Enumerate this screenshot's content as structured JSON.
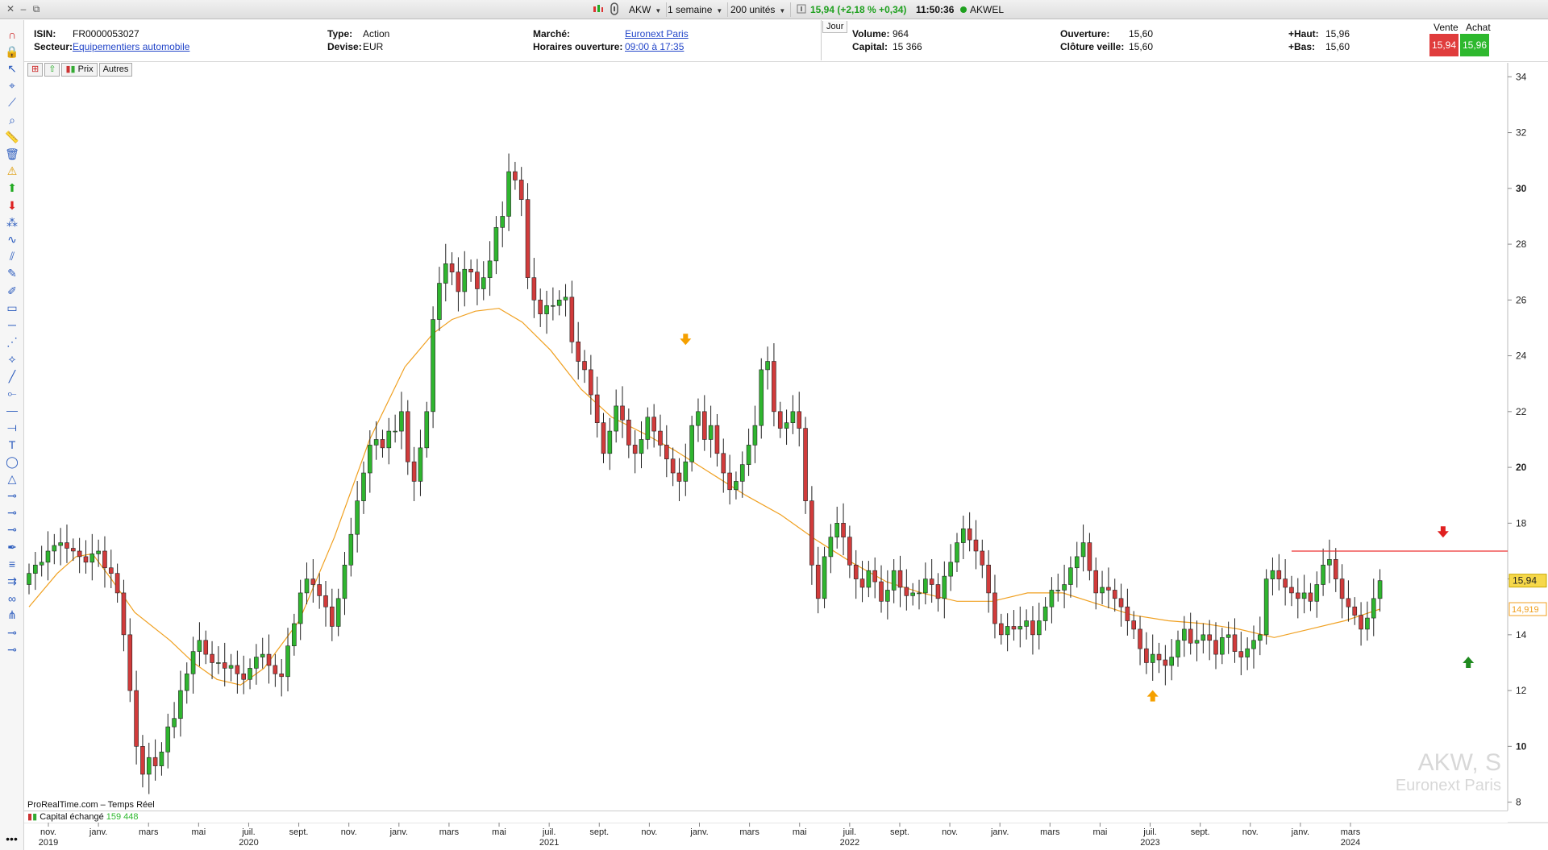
{
  "window": {
    "controls": [
      "close-icon",
      "minimize-icon",
      "restore-icon"
    ]
  },
  "toolbar_top": {
    "symbol": "AKW",
    "period": "1 semaine",
    "units": "200 unités",
    "price_status": "15,94 (+2,18 % +0,34)",
    "time": "11:50:36",
    "name": "AKWEL",
    "live_color": "#1ea01e"
  },
  "info": {
    "isin_label": "ISIN:",
    "isin": "FR0000053027",
    "secteur_label": "Secteur:",
    "secteur": "Equipementiers automobile",
    "type_label": "Type:",
    "type": "Action",
    "devise_label": "Devise:",
    "devise": "EUR",
    "marche_label": "Marché:",
    "marche": "Euronext Paris",
    "horaires_label": "Horaires ouverture:",
    "horaires": "09:00 à 17:35",
    "jour_tab": "Jour",
    "volume_label": "Volume:",
    "volume": "964",
    "capital_label": "Capital:",
    "capital": "15 366",
    "ouverture_label": "Ouverture:",
    "ouverture": "15,60",
    "cloture_label": "Clôture veille:",
    "cloture": "15,60",
    "haut_label": "+Haut:",
    "haut": "15,96",
    "bas_label": "+Bas:",
    "bas": "15,60",
    "vente_label": "Vente",
    "vente": "15,94",
    "achat_label": "Achat",
    "achat": "15,96",
    "vente_color": "#e03c3c",
    "achat_color": "#2eb82e"
  },
  "chart_toolbar": {
    "prix_label": "Prix",
    "autres_label": "Autres"
  },
  "footer": {
    "provider": "ProRealTime.com – Temps Réel",
    "volume_label": "Capital échangé",
    "volume_value": "159 448",
    "watermark_symbol": "AKW, S",
    "watermark_market": "Euronext Paris"
  },
  "tools": [
    "magnet-icon",
    "lock-icon",
    "cursor-icon",
    "crosshair-icon",
    "trendline-icon",
    "zoom-icon",
    "ruler-icon",
    "trash-icon",
    "alert-icon",
    "buy-arrow-icon",
    "sell-arrow-icon",
    "fib-icon",
    "wave-icon",
    "channel-icon",
    "pencil-icon",
    "eraser-icon",
    "rectangle-icon",
    "hline-icon",
    "pattern-icon",
    "gann-icon",
    "line-icon",
    "segment-icon",
    "horizontal-icon",
    "ray-icon",
    "text-icon",
    "ellipse-icon",
    "triangle-icon",
    "level-icon",
    "level2-icon",
    "level3-icon",
    "pen-icon",
    "fibtime-icon",
    "regression-icon",
    "cycle-icon",
    "pitchfork-icon",
    "level4-icon",
    "level5-icon"
  ],
  "chart_data": {
    "type": "candlestick",
    "title": "",
    "ylim": [
      7.7,
      34.5
    ],
    "y_ticks": [
      8,
      10,
      12,
      14,
      16,
      18,
      20,
      22,
      24,
      26,
      28,
      30,
      32,
      34
    ],
    "y_ticks_bold": [
      10,
      20,
      30
    ],
    "x_labels": [
      {
        "month": "nov.",
        "year": "2019"
      },
      {
        "month": "janv.",
        "year": ""
      },
      {
        "month": "mars",
        "year": ""
      },
      {
        "month": "mai",
        "year": ""
      },
      {
        "month": "juil.",
        "year": "2020"
      },
      {
        "month": "sept.",
        "year": ""
      },
      {
        "month": "nov.",
        "year": ""
      },
      {
        "month": "janv.",
        "year": ""
      },
      {
        "month": "mars",
        "year": ""
      },
      {
        "month": "mai",
        "year": ""
      },
      {
        "month": "juil.",
        "year": "2021"
      },
      {
        "month": "sept.",
        "year": ""
      },
      {
        "month": "nov.",
        "year": ""
      },
      {
        "month": "janv.",
        "year": ""
      },
      {
        "month": "mars",
        "year": ""
      },
      {
        "month": "mai",
        "year": ""
      },
      {
        "month": "juil.",
        "year": "2022"
      },
      {
        "month": "sept.",
        "year": ""
      },
      {
        "month": "nov.",
        "year": ""
      },
      {
        "month": "janv.",
        "year": ""
      },
      {
        "month": "mars",
        "year": ""
      },
      {
        "month": "mai",
        "year": ""
      },
      {
        "month": "juil.",
        "year": "2023"
      },
      {
        "month": "sept.",
        "year": ""
      },
      {
        "month": "nov.",
        "year": ""
      },
      {
        "month": "janv.",
        "year": ""
      },
      {
        "month": "mars",
        "year": "2024"
      }
    ],
    "close": [
      16.2,
      16.5,
      16.6,
      17.0,
      17.2,
      17.3,
      17.1,
      17.0,
      16.8,
      16.6,
      16.9,
      17.0,
      16.4,
      16.2,
      15.5,
      14.0,
      12.0,
      10.0,
      9.0,
      9.6,
      9.3,
      9.8,
      10.7,
      11.0,
      12.0,
      12.6,
      13.4,
      13.8,
      13.3,
      13.0,
      13.0,
      12.8,
      12.9,
      12.6,
      12.4,
      12.8,
      13.2,
      13.3,
      12.9,
      12.6,
      12.5,
      13.6,
      14.4,
      15.5,
      16.0,
      15.8,
      15.4,
      15.0,
      14.3,
      15.3,
      16.5,
      17.6,
      18.8,
      19.8,
      20.8,
      21.0,
      20.7,
      21.3,
      21.3,
      22.0,
      20.2,
      19.5,
      20.7,
      22.0,
      25.3,
      26.6,
      27.3,
      27.0,
      26.3,
      27.1,
      27.0,
      26.4,
      26.8,
      27.4,
      28.6,
      29.0,
      30.6,
      30.3,
      29.6,
      26.8,
      26.0,
      25.5,
      25.8,
      25.8,
      26.0,
      26.1,
      24.5,
      23.8,
      23.5,
      22.6,
      21.6,
      20.5,
      21.3,
      22.2,
      21.7,
      20.8,
      20.5,
      21.0,
      21.8,
      21.3,
      20.8,
      20.3,
      19.8,
      19.5,
      20.2,
      21.5,
      22.0,
      21.0,
      21.5,
      20.5,
      19.8,
      19.2,
      19.5,
      20.1,
      20.8,
      21.5,
      23.5,
      23.8,
      22.0,
      21.4,
      21.6,
      22.0,
      21.4,
      18.8,
      16.5,
      15.3,
      16.8,
      17.5,
      18.0,
      17.5,
      16.5,
      16.0,
      15.7,
      16.3,
      15.9,
      15.2,
      15.6,
      16.3,
      15.7,
      15.4,
      15.5,
      15.5,
      16.0,
      15.8,
      15.3,
      16.1,
      16.6,
      17.3,
      17.8,
      17.4,
      17.0,
      16.5,
      15.5,
      14.4,
      14.0,
      14.3,
      14.2,
      14.3,
      14.5,
      14.0,
      14.5,
      15.0,
      15.6,
      15.6,
      15.8,
      16.4,
      16.8,
      17.3,
      16.3,
      15.5,
      15.7,
      15.6,
      15.3,
      15.0,
      14.5,
      14.2,
      13.5,
      13.0,
      13.3,
      13.1,
      12.9,
      13.2,
      13.8,
      14.2,
      13.7,
      13.8,
      14.0,
      13.8,
      13.3,
      13.9,
      14.0,
      13.4,
      13.2,
      13.5,
      13.8,
      14.0,
      16.0,
      16.3,
      16.0,
      15.7,
      15.5,
      15.3,
      15.5,
      15.2,
      15.8,
      16.5,
      16.7,
      16.0,
      15.3,
      15.0,
      14.7,
      14.2,
      14.6,
      15.3,
      15.94
    ],
    "open": [
      15.8,
      16.2,
      16.5,
      16.6,
      17.0,
      17.2,
      17.3,
      17.1,
      17.0,
      16.8,
      16.6,
      16.9,
      17.0,
      16.4,
      16.2,
      15.5,
      14.0,
      12.0,
      10.0,
      9.0,
      9.6,
      9.3,
      9.8,
      10.7,
      11.0,
      12.0,
      12.6,
      13.4,
      13.8,
      13.3,
      13.0,
      13.0,
      12.8,
      12.9,
      12.6,
      12.4,
      12.8,
      13.2,
      13.3,
      12.9,
      12.6,
      12.5,
      13.6,
      14.4,
      15.5,
      16.0,
      15.8,
      15.4,
      15.0,
      14.3,
      15.3,
      16.5,
      17.6,
      18.8,
      19.8,
      20.8,
      21.0,
      20.7,
      21.3,
      21.3,
      22.0,
      20.2,
      19.5,
      20.7,
      22.0,
      25.3,
      26.6,
      27.3,
      27.0,
      26.3,
      27.1,
      27.0,
      26.4,
      26.8,
      27.4,
      28.6,
      29.0,
      30.6,
      30.3,
      29.6,
      26.8,
      26.0,
      25.5,
      25.8,
      25.8,
      26.0,
      26.1,
      24.5,
      23.8,
      23.5,
      22.6,
      21.6,
      20.5,
      21.3,
      22.2,
      21.7,
      20.8,
      20.5,
      21.0,
      21.8,
      21.3,
      20.8,
      20.3,
      19.8,
      19.5,
      20.2,
      21.5,
      22.0,
      21.0,
      21.5,
      20.5,
      19.8,
      19.2,
      19.5,
      20.1,
      20.8,
      21.5,
      23.5,
      23.8,
      22.0,
      21.4,
      21.6,
      22.0,
      21.4,
      18.8,
      16.5,
      15.3,
      16.8,
      17.5,
      18.0,
      17.5,
      16.5,
      16.0,
      15.7,
      16.3,
      15.9,
      15.2,
      15.6,
      16.3,
      15.7,
      15.4,
      15.5,
      15.5,
      16.0,
      15.8,
      15.3,
      16.1,
      16.6,
      17.3,
      17.8,
      17.4,
      17.0,
      16.5,
      15.5,
      14.4,
      14.0,
      14.3,
      14.2,
      14.3,
      14.5,
      14.0,
      14.5,
      15.0,
      15.6,
      15.6,
      15.8,
      16.4,
      16.8,
      17.3,
      16.3,
      15.5,
      15.7,
      15.6,
      15.3,
      15.0,
      14.5,
      14.2,
      13.5,
      13.0,
      13.3,
      13.1,
      12.9,
      13.2,
      13.8,
      14.2,
      13.7,
      13.8,
      14.0,
      13.8,
      13.3,
      13.9,
      14.0,
      13.4,
      13.2,
      13.5,
      13.8,
      14.0,
      16.0,
      16.3,
      16.0,
      15.7,
      15.5,
      15.3,
      15.5,
      15.2,
      15.8,
      16.5,
      16.7,
      16.0,
      15.3,
      15.0,
      14.7,
      14.2,
      14.6,
      15.3
    ],
    "moving_average": {
      "color": "#f0a020",
      "last_value": "14,919",
      "points": [
        [
          0,
          15.0
        ],
        [
          12,
          16.2
        ],
        [
          20,
          16.8
        ],
        [
          27,
          16.9
        ],
        [
          35,
          16.0
        ],
        [
          45,
          14.8
        ],
        [
          60,
          13.8
        ],
        [
          70,
          13.0
        ],
        [
          80,
          12.4
        ],
        [
          90,
          12.2
        ],
        [
          100,
          12.8
        ],
        [
          115,
          14.5
        ],
        [
          130,
          17.5
        ],
        [
          145,
          21.0
        ],
        [
          160,
          23.6
        ],
        [
          172,
          24.8
        ],
        [
          180,
          25.3
        ],
        [
          190,
          25.6
        ],
        [
          200,
          25.7
        ],
        [
          210,
          25.2
        ],
        [
          222,
          24.2
        ],
        [
          235,
          22.8
        ],
        [
          248,
          21.8
        ],
        [
          262,
          21.2
        ],
        [
          275,
          20.6
        ],
        [
          290,
          19.8
        ],
        [
          305,
          19.0
        ],
        [
          320,
          18.3
        ],
        [
          335,
          17.4
        ],
        [
          350,
          16.6
        ],
        [
          365,
          15.9
        ],
        [
          380,
          15.5
        ],
        [
          395,
          15.2
        ],
        [
          410,
          15.2
        ],
        [
          425,
          15.5
        ],
        [
          440,
          15.5
        ],
        [
          455,
          15.1
        ],
        [
          470,
          14.7
        ],
        [
          485,
          14.5
        ],
        [
          500,
          14.4
        ],
        [
          515,
          14.2
        ],
        [
          530,
          13.9
        ],
        [
          545,
          14.2
        ],
        [
          560,
          14.5
        ],
        [
          575,
          14.919
        ]
      ]
    },
    "resistance_level": 17.0,
    "last_price": "15,94",
    "last_price_value": 15.94
  }
}
